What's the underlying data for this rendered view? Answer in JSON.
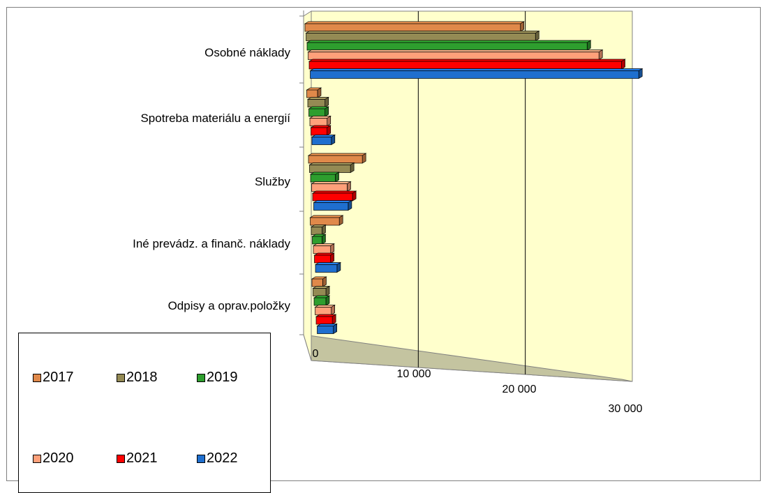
{
  "chart_data": {
    "type": "bar",
    "orientation": "horizontal",
    "style": "3d",
    "categories": [
      "Osobné náklady",
      "Spotreba materiálu a energií",
      "Služby",
      "Iné prevádz. a finanč. náklady",
      "Odpisy a oprav.položky"
    ],
    "series": [
      {
        "name": "2017",
        "color": "#E0894A",
        "values": [
          20000,
          1000,
          5000,
          2700,
          1000
        ]
      },
      {
        "name": "2018",
        "color": "#948A54",
        "values": [
          21300,
          1600,
          3800,
          1000,
          1200
        ]
      },
      {
        "name": "2019",
        "color": "#2E9E2E",
        "values": [
          26000,
          1500,
          2300,
          900,
          1100
        ]
      },
      {
        "name": "2020",
        "color": "#FFA07A",
        "values": [
          27000,
          1600,
          3300,
          1600,
          1500
        ]
      },
      {
        "name": "2021",
        "color": "#FF0000",
        "values": [
          29000,
          1500,
          3700,
          1500,
          1500
        ]
      },
      {
        "name": "2022",
        "color": "#1F6FCF",
        "values": [
          30500,
          1800,
          3200,
          2000,
          1500
        ]
      }
    ],
    "x_ticks": [
      "0",
      "10 000",
      "20 000",
      "30 000"
    ],
    "xlim": [
      0,
      30000
    ],
    "grid": true,
    "legend_position": "bottom-left",
    "plot_background": "#FFFFCC",
    "floor_color": "#C4C4A0"
  }
}
